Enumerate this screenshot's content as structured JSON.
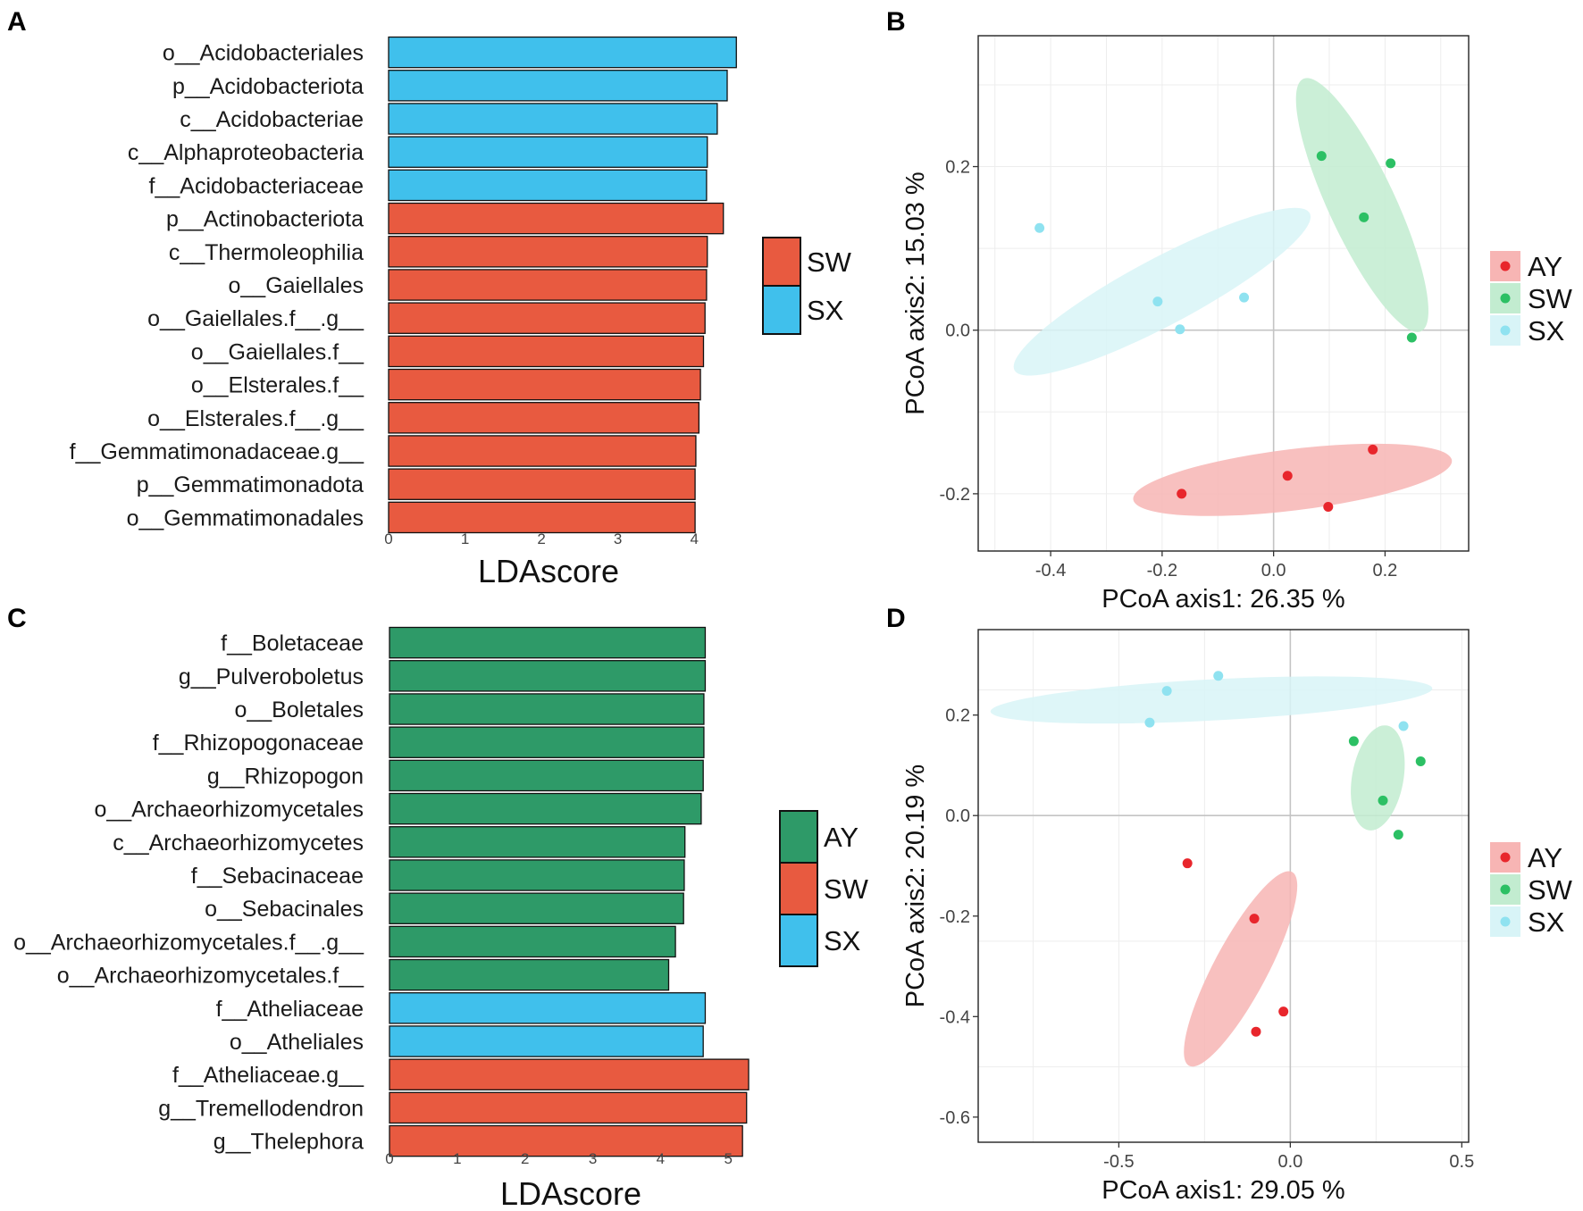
{
  "figure": {
    "panel_labels": [
      "A",
      "B",
      "C",
      "D"
    ]
  },
  "colors": {
    "SW_bar": "#E85A40",
    "SX_bar": "#40C0EC",
    "AY_bar": "#2E9A68",
    "AY_point": "#E8262C",
    "SW_point": "#2CC064",
    "SX_point": "#8FE2F0",
    "AY_ellipse": "#F7B5B4",
    "SW_ellipse": "#C2ECD0",
    "SX_ellipse": "#D8F4F7"
  },
  "chart_data": [
    {
      "panel": "A",
      "type": "bar",
      "orientation": "horizontal",
      "xlabel": "LDAscore",
      "xlim": [
        0,
        4.5
      ],
      "xticks": [
        0,
        1,
        2,
        3,
        4
      ],
      "categories": [
        "o__Acidobacteriales",
        "p__Acidobacteriota",
        "c__Acidobacteriae",
        "c__Alphaproteobacteria",
        "f__Acidobacteriaceae",
        "p__Actinobacteriota",
        "c__Thermoleophilia",
        "o__Gaiellales",
        "o__Gaiellales.f__.g__",
        "o__Gaiellales.f__",
        "o__Elsterales.f__",
        "o__Elsterales.f__.g__",
        "f__Gemmatimonadaceae.g__",
        "p__Gemmatimonadota",
        "o__Gemmatimonadales"
      ],
      "values": [
        4.55,
        4.43,
        4.3,
        4.17,
        4.16,
        4.38,
        4.17,
        4.16,
        4.14,
        4.12,
        4.08,
        4.06,
        4.02,
        4.01,
        4.01
      ],
      "groups": [
        "SX",
        "SX",
        "SX",
        "SX",
        "SX",
        "SW",
        "SW",
        "SW",
        "SW",
        "SW",
        "SW",
        "SW",
        "SW",
        "SW",
        "SW"
      ],
      "legend": [
        "SW",
        "SX"
      ]
    },
    {
      "panel": "B",
      "type": "scatter",
      "xlabel": "PCoA axis1: 26.35 %",
      "ylabel": "PCoA axis2: 15.03 %",
      "xlim": [
        -0.53,
        0.35
      ],
      "ylim": [
        -0.27,
        0.36
      ],
      "xticks": [
        "-0.4",
        "-0.2",
        "0.0",
        "0.2"
      ],
      "yticks": [
        "-0.2",
        "0.0",
        "0.2"
      ],
      "series": [
        {
          "name": "AY",
          "points": [
            [
              -0.165,
              -0.2
            ],
            [
              0.025,
              -0.178
            ],
            [
              0.098,
              -0.216
            ],
            [
              0.178,
              -0.146
            ]
          ]
        },
        {
          "name": "SW",
          "points": [
            [
              0.086,
              0.213
            ],
            [
              0.21,
              0.204
            ],
            [
              0.162,
              0.138
            ],
            [
              0.248,
              -0.009
            ]
          ]
        },
        {
          "name": "SX",
          "points": [
            [
              -0.42,
              0.125
            ],
            [
              -0.208,
              0.035
            ],
            [
              -0.168,
              0.001
            ],
            [
              -0.053,
              0.04
            ]
          ]
        }
      ],
      "ellipses": [
        {
          "group": "AY",
          "cx": 0.034,
          "cy": -0.183,
          "rx": 0.288,
          "ry": 0.055,
          "angle": 7
        },
        {
          "group": "SW",
          "cx": 0.159,
          "cy": 0.153,
          "rx": 0.25,
          "ry": 0.06,
          "angle": -65
        },
        {
          "group": "SX",
          "cx": -0.2,
          "cy": 0.047,
          "rx": 0.3,
          "ry": 0.06,
          "angle": 28
        }
      ],
      "legend": [
        "AY",
        "SW",
        "SX"
      ]
    },
    {
      "panel": "C",
      "type": "bar",
      "orientation": "horizontal",
      "xlabel": "LDAscore",
      "xlim": [
        0,
        5.3
      ],
      "xticks": [
        0,
        1,
        2,
        3,
        4,
        5
      ],
      "categories": [
        "f__Boletaceae",
        "g__Pulveroboletus",
        "o__Boletales",
        "f__Rhizopogonaceae",
        "g__Rhizopogon",
        "o__Archaeorhizomycetales",
        "c__Archaeorhizomycetes",
        "f__Sebacinaceae",
        "o__Sebacinales",
        "o__Archaeorhizomycetales.f__.g__",
        "o__Archaeorhizomycetales.f__",
        "f__Atheliaceae",
        "o__Atheliales",
        "f__Atheliaceae.g__",
        "g__Tremellodendron",
        "g__Thelephora"
      ],
      "values": [
        4.66,
        4.66,
        4.64,
        4.64,
        4.63,
        4.6,
        4.36,
        4.35,
        4.34,
        4.22,
        4.12,
        4.66,
        4.63,
        5.3,
        5.27,
        5.21
      ],
      "groups": [
        "AY",
        "AY",
        "AY",
        "AY",
        "AY",
        "AY",
        "AY",
        "AY",
        "AY",
        "AY",
        "AY",
        "SX",
        "SX",
        "SW",
        "SW",
        "SW"
      ],
      "legend": [
        "AY",
        "SW",
        "SX"
      ]
    },
    {
      "panel": "D",
      "type": "scatter",
      "xlabel": "PCoA axis1: 29.05 %",
      "ylabel": "PCoA axis2: 20.19 %",
      "xlim": [
        -0.91,
        0.52
      ],
      "ylim": [
        -0.65,
        0.37
      ],
      "xticks": [
        "-0.5",
        "0.0",
        "0.5"
      ],
      "yticks": [
        "-0.6",
        "-0.4",
        "-0.2",
        "0.0",
        "0.2"
      ],
      "series": [
        {
          "name": "AY",
          "points": [
            [
              -0.3,
              -0.095
            ],
            [
              -0.105,
              -0.205
            ],
            [
              -0.02,
              -0.39
            ],
            [
              -0.1,
              -0.43
            ]
          ]
        },
        {
          "name": "SW",
          "points": [
            [
              0.185,
              0.148
            ],
            [
              0.38,
              0.108
            ],
            [
              0.27,
              0.03
            ],
            [
              0.315,
              -0.038
            ]
          ]
        },
        {
          "name": "SX",
          "points": [
            [
              -0.41,
              0.185
            ],
            [
              -0.36,
              0.248
            ],
            [
              -0.21,
              0.278
            ],
            [
              0.33,
              0.178
            ]
          ]
        }
      ],
      "ellipses": [
        {
          "group": "AY",
          "cx": -0.145,
          "cy": -0.305,
          "rx": 0.32,
          "ry": 0.078,
          "angle": 62
        },
        {
          "group": "SW",
          "cx": 0.255,
          "cy": 0.075,
          "rx": 0.155,
          "ry": 0.075,
          "angle": 80
        },
        {
          "group": "SX",
          "cx": -0.23,
          "cy": 0.23,
          "rx": 0.645,
          "ry": 0.06,
          "angle": 3
        }
      ],
      "legend": [
        "AY",
        "SW",
        "SX"
      ]
    }
  ]
}
